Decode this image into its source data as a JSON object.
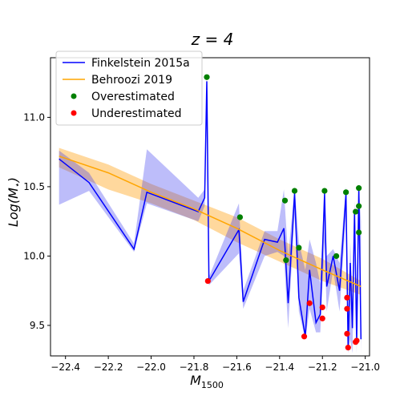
{
  "chart_data": {
    "type": "line",
    "title": "z = 4",
    "xlabel": "M",
    "xlabel_sub": "1500",
    "ylabel": "Log(M",
    "ylabel_sub": "⋆",
    "ylabel_close": ")",
    "xlim": [
      -22.47,
      -20.98
    ],
    "ylim": [
      9.28,
      11.43
    ],
    "xticks": [
      -22.4,
      -22.2,
      -22.0,
      -21.8,
      -21.6,
      -21.4,
      -21.2,
      -21.0
    ],
    "xtick_labels": [
      "−22.4",
      "−22.2",
      "−22.0",
      "−21.8",
      "−21.6",
      "−21.4",
      "−21.2",
      "−21.0"
    ],
    "yticks": [
      9.5,
      10.0,
      10.5,
      11.0
    ],
    "ytick_labels": [
      "9.5",
      "10.0",
      "10.5",
      "11.0"
    ],
    "grid": false,
    "legend_position": "top-left",
    "colors": {
      "finkelstein": "#0000ff",
      "finkelstein_band": "#3333ee",
      "behroozi": "#ffa500",
      "behroozi_band": "#ffb84d",
      "over": "#008000",
      "under": "#ff0000"
    },
    "series": [
      {
        "name": "Finkelstein 2015a",
        "kind": "line-with-band",
        "points": [
          [
            -22.43,
            10.7,
            10.37,
            10.76
          ],
          [
            -22.29,
            10.53,
            10.47,
            10.6
          ],
          [
            -22.08,
            10.05,
            10.03,
            10.09
          ],
          [
            -22.02,
            10.46,
            10.38,
            10.77
          ],
          [
            -21.78,
            10.32,
            10.25,
            10.42
          ],
          [
            -21.75,
            10.42,
            10.36,
            10.48
          ],
          [
            -21.74,
            11.26,
            11.2,
            11.3
          ],
          [
            -21.73,
            9.82,
            9.79,
            9.85
          ],
          [
            -21.59,
            10.19,
            10.02,
            10.38
          ],
          [
            -21.57,
            9.67,
            9.62,
            9.75
          ],
          [
            -21.47,
            10.12,
            10.0,
            10.18
          ],
          [
            -21.41,
            10.1,
            10.03,
            10.18
          ],
          [
            -21.38,
            10.2,
            10.0,
            10.48
          ],
          [
            -21.36,
            9.66,
            9.48,
            9.99
          ],
          [
            -21.33,
            10.45,
            10.3,
            10.5
          ],
          [
            -21.31,
            9.7,
            9.6,
            10.1
          ],
          [
            -21.28,
            9.42,
            9.4,
            9.9
          ],
          [
            -21.26,
            9.9,
            9.62,
            10.12
          ],
          [
            -21.23,
            9.52,
            9.45,
            9.95
          ],
          [
            -21.21,
            9.58,
            9.45,
            9.8
          ],
          [
            -21.19,
            10.45,
            10.1,
            10.5
          ],
          [
            -21.18,
            9.78,
            9.6,
            10.0
          ],
          [
            -21.15,
            10.0,
            9.9,
            10.05
          ],
          [
            -21.12,
            9.75,
            9.6,
            9.95
          ],
          [
            -21.09,
            10.45,
            10.3,
            10.5
          ],
          [
            -21.08,
            9.34,
            9.3,
            9.5
          ],
          [
            -21.07,
            9.95,
            9.4,
            10.1
          ],
          [
            -21.06,
            9.48,
            9.3,
            9.7
          ],
          [
            -21.05,
            10.32,
            10.1,
            10.4
          ],
          [
            -21.04,
            9.38,
            9.3,
            9.55
          ],
          [
            -21.03,
            10.49,
            10.3,
            10.5
          ],
          [
            -21.02,
            9.4,
            9.3,
            10.25
          ]
        ]
      },
      {
        "name": "Behroozi 2019",
        "kind": "line-with-band",
        "points": [
          [
            -22.43,
            10.72,
            10.64,
            10.78
          ],
          [
            -22.2,
            10.6,
            10.48,
            10.66
          ],
          [
            -22.0,
            10.46,
            10.38,
            10.52
          ],
          [
            -21.8,
            10.34,
            10.26,
            10.4
          ],
          [
            -21.6,
            10.2,
            10.1,
            10.28
          ],
          [
            -21.4,
            10.04,
            9.96,
            10.12
          ],
          [
            -21.2,
            9.9,
            9.82,
            9.98
          ],
          [
            -21.02,
            9.78,
            9.72,
            9.82
          ]
        ]
      },
      {
        "name": "Overestimated",
        "kind": "scatter",
        "points": [
          [
            -21.74,
            11.29
          ],
          [
            -21.585,
            10.28
          ],
          [
            -21.375,
            10.4
          ],
          [
            -21.37,
            9.97
          ],
          [
            -21.33,
            10.47
          ],
          [
            -21.31,
            10.06
          ],
          [
            -21.19,
            10.47
          ],
          [
            -21.135,
            10.0
          ],
          [
            -21.09,
            10.46
          ],
          [
            -21.045,
            10.32
          ],
          [
            -21.03,
            10.49
          ],
          [
            -21.03,
            10.36
          ],
          [
            -21.03,
            10.17
          ]
        ]
      },
      {
        "name": "Underestimated",
        "kind": "scatter",
        "points": [
          [
            -21.735,
            9.82
          ],
          [
            -21.285,
            9.42
          ],
          [
            -21.26,
            9.66
          ],
          [
            -21.2,
            9.63
          ],
          [
            -21.2,
            9.55
          ],
          [
            -21.085,
            9.7
          ],
          [
            -21.085,
            9.62
          ],
          [
            -21.085,
            9.44
          ],
          [
            -21.08,
            9.34
          ],
          [
            -21.045,
            9.38
          ],
          [
            -21.04,
            9.39
          ]
        ]
      }
    ]
  }
}
